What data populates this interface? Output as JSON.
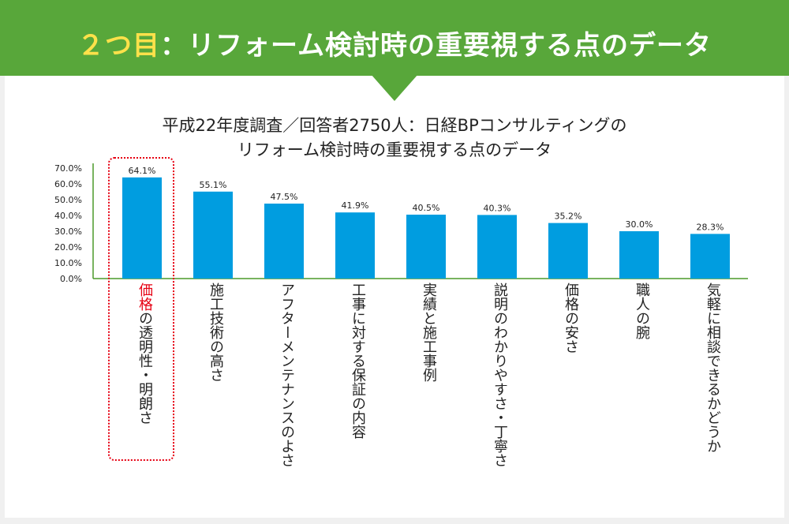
{
  "banner": {
    "number": "２つ目",
    "title": "：リフォーム検討時の重要視する点のデータ"
  },
  "chart_title_line1": "平成22年度調査／回答者2750人：日経BPコンサルティングの",
  "chart_title_line2": "リフォーム検討時の重要視する点のデータ",
  "colors": {
    "bar": "#009de0",
    "banner": "#58a73a",
    "highlight": "#e60012"
  },
  "chart_data": {
    "type": "bar",
    "title": "平成22年度調査／回答者2750人：日経BPコンサルティングのリフォーム検討時の重要視する点のデータ",
    "categories": [
      "価格の透明性・明朗さ",
      "施工技術の高さ",
      "アフターメンテナンスのよさ",
      "工事に対する保証の内容",
      "実績と施工事例",
      "説明のわかりやすさ・丁寧さ",
      "価格の安さ",
      "職人の腕",
      "気軽に相談できるかどうか"
    ],
    "values": [
      64.1,
      55.1,
      47.5,
      41.9,
      40.5,
      40.3,
      35.2,
      30.0,
      28.3
    ],
    "value_labels": [
      "64.1%",
      "55.1%",
      "47.5%",
      "41.9%",
      "40.5%",
      "40.3%",
      "35.2%",
      "30.0%",
      "28.3%"
    ],
    "yticks": [
      0,
      10,
      20,
      30,
      40,
      50,
      60,
      70
    ],
    "ytick_labels": [
      "0.0%",
      "10.0%",
      "20.0%",
      "30.0%",
      "40.0%",
      "50.0%",
      "60.0%",
      "70.0%"
    ],
    "ylim": [
      0,
      70
    ],
    "highlight_category": 0,
    "highlight_text": "価格",
    "xlabel": "",
    "ylabel": "",
    "grid": false,
    "legend": "none"
  }
}
